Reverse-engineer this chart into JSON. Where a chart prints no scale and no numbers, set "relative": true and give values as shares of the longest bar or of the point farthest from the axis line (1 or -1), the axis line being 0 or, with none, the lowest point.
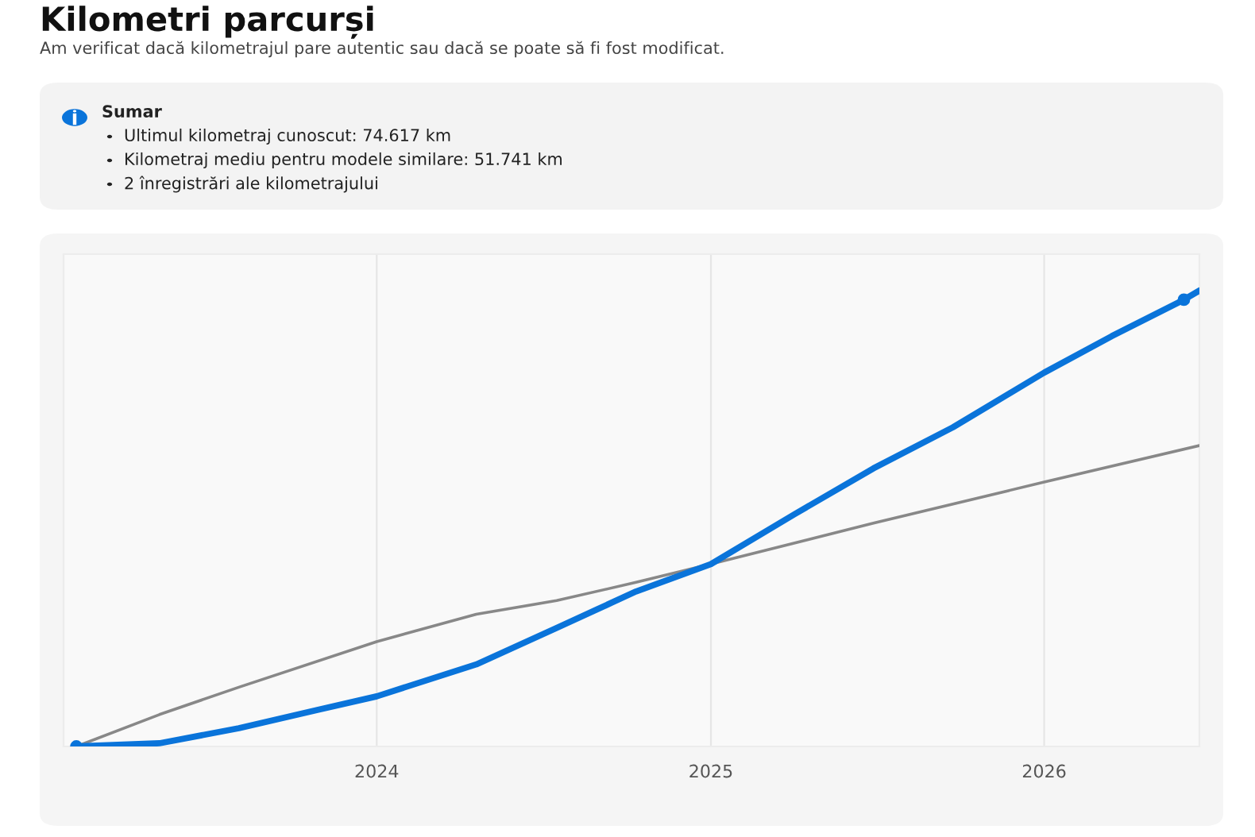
{
  "chart_data": {
    "type": "line",
    "title": "Kilometri parcurși",
    "subtitle": "Am verificat dacă kilometrajul pare autentic sau dacă se poate să fi fost modificat.",
    "annotations": [
      "Sumar",
      "Ultimul kilometraj cunoscut: 74.617 km",
      "Kilometraj mediu pentru modele similare: 51.741 km",
      "2 înregistrări ale kilometrajului"
    ],
    "relative": true,
    "xlim": [
      "2023-01-23",
      "2026-06-20"
    ],
    "xticks": [
      {
        "value": "2024-01-01",
        "label": "2024"
      },
      {
        "value": "2025-01-01",
        "label": "2025"
      },
      {
        "value": "2026-01-01",
        "label": "2026"
      }
    ],
    "grid": "x",
    "series": [
      {
        "color": "#888888",
        "x": [
          "2023-02-06",
          "2023-05-08",
          "2023-08-03",
          "2024-01-01",
          "2024-04-19",
          "2024-07-16",
          "2024-10-11",
          "2025-01-01",
          "2025-06-28",
          "2026-01-01",
          "2026-06-20"
        ],
        "values": [
          0,
          0.07,
          0.13,
          0.23,
          0.29,
          0.32,
          0.36,
          0.4,
          0.49,
          0.58,
          0.66
        ]
      },
      {
        "color": "#0a74da",
        "x": [
          "2023-02-06",
          "2023-05-08",
          "2023-08-03",
          "2023-10-28",
          "2024-01-01",
          "2024-04-19",
          "2024-07-16",
          "2024-10-11",
          "2025-01-01",
          "2025-04-03",
          "2025-06-28",
          "2025-09-23",
          "2026-01-01",
          "2026-03-16",
          "2026-06-03",
          "2026-06-20"
        ],
        "values": [
          0,
          0.007,
          0.04,
          0.08,
          0.11,
          0.18,
          0.26,
          0.34,
          0.4,
          0.51,
          0.61,
          0.7,
          0.82,
          0.9,
          0.98,
          1
        ]
      },
      {
        "type": "scatter",
        "color": "#0a74da",
        "x": [
          "2023-02-06",
          "2026-06-03"
        ],
        "values": [
          0,
          0.98
        ]
      }
    ]
  }
}
